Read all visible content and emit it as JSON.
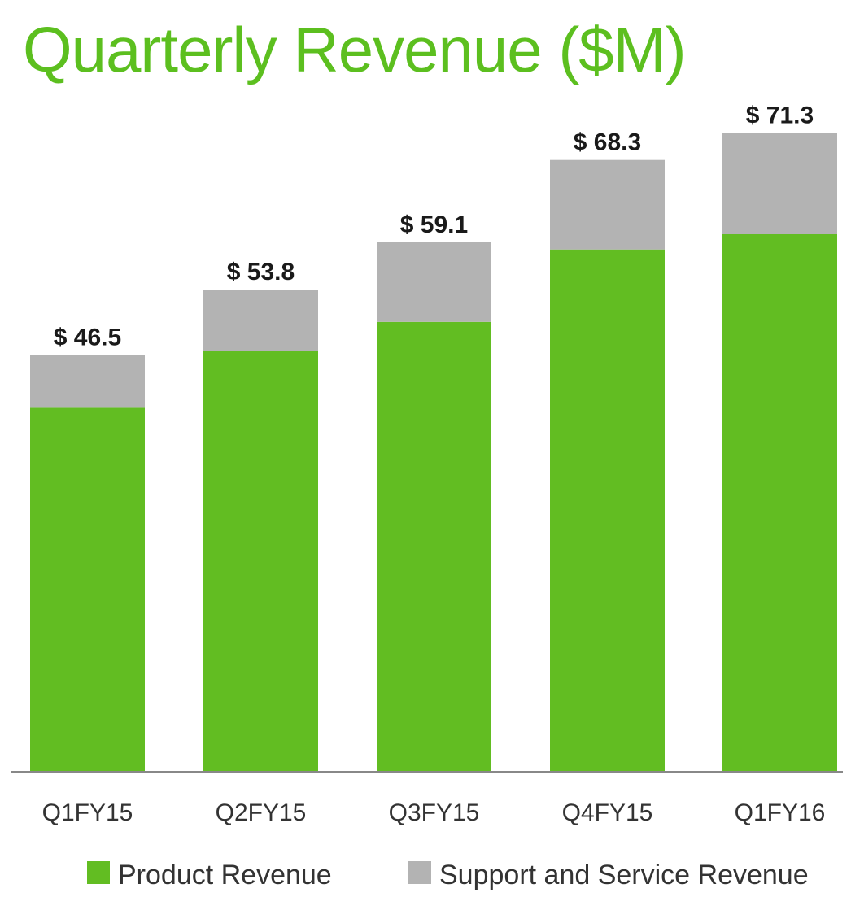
{
  "title": "Quarterly Revenue ($M)",
  "colors": {
    "title": "#5cbf1f",
    "product": "#62bd22",
    "support": "#b3b3b3",
    "axis": "#888888"
  },
  "chart_data": {
    "type": "bar",
    "stacked": true,
    "title": "Quarterly Revenue ($M)",
    "xlabel": "",
    "ylabel": "",
    "ylim": [
      0,
      80
    ],
    "grid": false,
    "legend_position": "bottom",
    "categories": [
      "Q1FY15",
      "Q2FY15",
      "Q3FY15",
      "Q4FY15",
      "Q1FY16"
    ],
    "series": [
      {
        "name": "Product Revenue",
        "color": "#62bd22",
        "values": [
          40.6,
          47.0,
          50.2,
          58.3,
          60.0
        ]
      },
      {
        "name": "Support and Service Revenue",
        "color": "#b3b3b3",
        "values": [
          5.9,
          6.8,
          8.9,
          10.0,
          11.3
        ]
      }
    ],
    "totals": [
      46.5,
      53.8,
      59.1,
      68.3,
      71.3
    ],
    "total_labels": [
      "$ 46.5",
      "$ 53.8",
      "$ 59.1",
      "$ 68.3",
      "$ 71.3"
    ]
  }
}
